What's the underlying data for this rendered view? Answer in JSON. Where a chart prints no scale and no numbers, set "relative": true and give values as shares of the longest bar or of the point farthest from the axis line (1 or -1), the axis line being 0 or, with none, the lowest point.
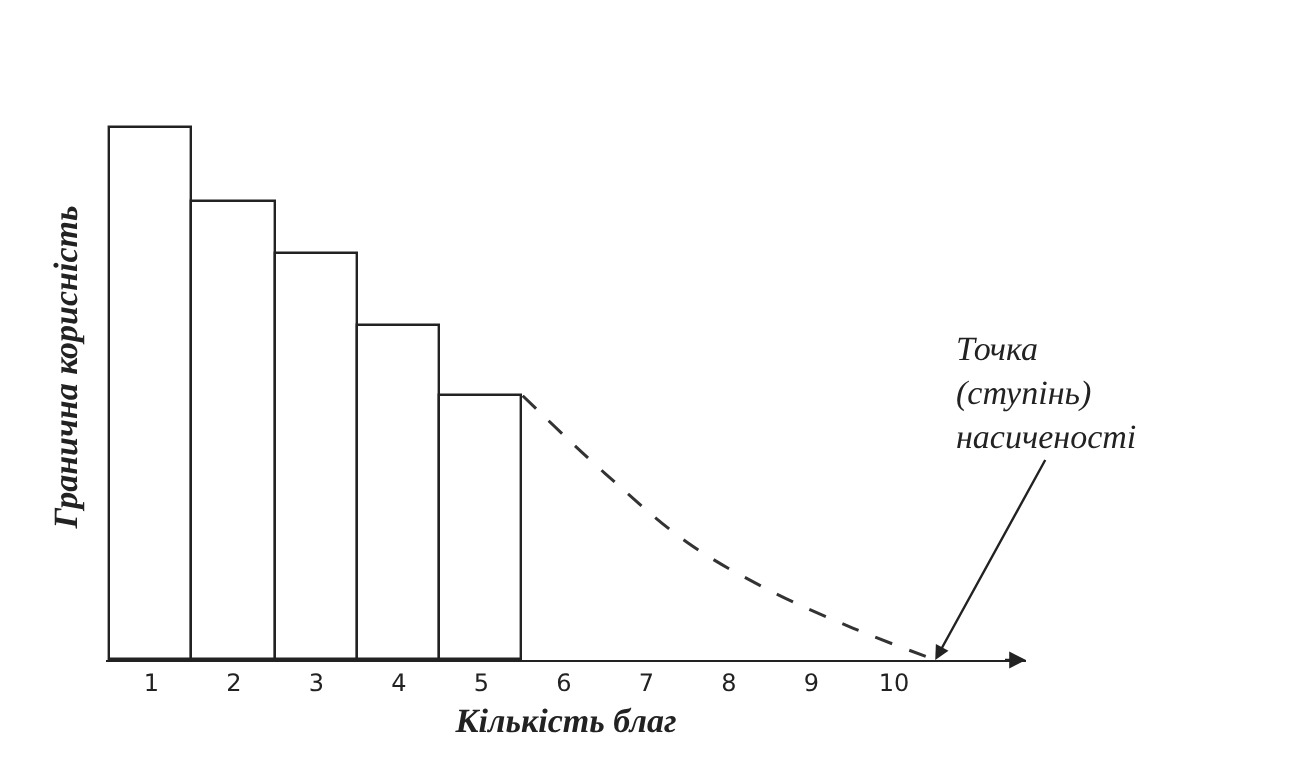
{
  "chart_data": {
    "type": "bar",
    "relative": true,
    "xlabel": "Кількість благ",
    "ylabel": "Гранична корисність",
    "x": [
      1,
      2,
      3,
      4,
      5
    ],
    "xlim": [
      0.45,
      11.6
    ],
    "xticks": [
      1,
      2,
      3,
      4,
      5,
      6,
      7,
      8,
      9,
      10
    ],
    "series": [
      {
        "color": "#ffffff",
        "values": [
          1,
          0.861,
          0.763,
          0.628,
          0.496
        ]
      },
      {
        "type": "line",
        "color": "#333333",
        "line_style": "dashed",
        "x": [
          5.5,
          6.5,
          7.5,
          8.5,
          9.5,
          10.5
        ],
        "values": [
          0.496,
          0.35,
          0.22,
          0.13,
          0.06,
          0
        ]
      }
    ],
    "annotations": [
      {
        "text": "Точка\n(ступінь)\nнасиченості",
        "x": 10.5,
        "y": 0
      }
    ],
    "grid": false
  }
}
